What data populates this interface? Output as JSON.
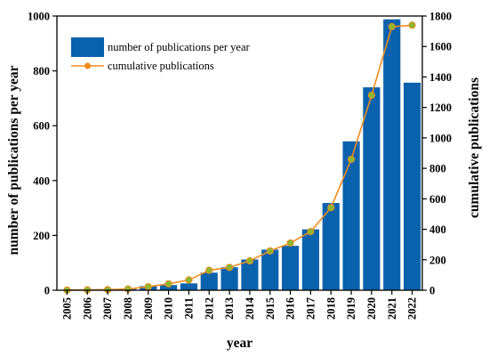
{
  "chart_data": {
    "type": "bar",
    "x": [
      "2005",
      "2006",
      "2007",
      "2008",
      "2009",
      "2010",
      "2011",
      "2012",
      "2013",
      "2014",
      "2015",
      "2016",
      "2017",
      "2018",
      "2019",
      "2020",
      "2021",
      "2022"
    ],
    "series": [
      {
        "name": "number of publications per year",
        "type": "bar",
        "axis": "left",
        "color": "#0a62ad",
        "values": [
          1,
          1,
          2,
          4,
          15,
          19,
          25,
          64,
          84,
          112,
          148,
          162,
          222,
          318,
          543,
          740,
          988,
          757
        ]
      },
      {
        "name": "cumulative publications",
        "type": "line",
        "axis": "right",
        "color": "#f08c1e",
        "marker_color": "#8ab82e",
        "values": [
          1,
          2,
          4,
          8,
          23,
          42,
          67,
          131,
          150,
          193,
          258,
          310,
          385,
          542,
          860,
          1280,
          1730,
          1740
        ]
      }
    ],
    "xlabel": "year",
    "ylabel": "number of publications per year",
    "y2label": "cumulative publications",
    "ylim": [
      0,
      1000
    ],
    "y2lim": [
      0,
      1800
    ],
    "yticks": [
      0,
      200,
      400,
      600,
      800,
      1000
    ],
    "y2ticks": [
      0,
      200,
      400,
      600,
      800,
      1000,
      1200,
      1400,
      1600,
      1800
    ],
    "legend_position": "top-left",
    "grid": false
  }
}
